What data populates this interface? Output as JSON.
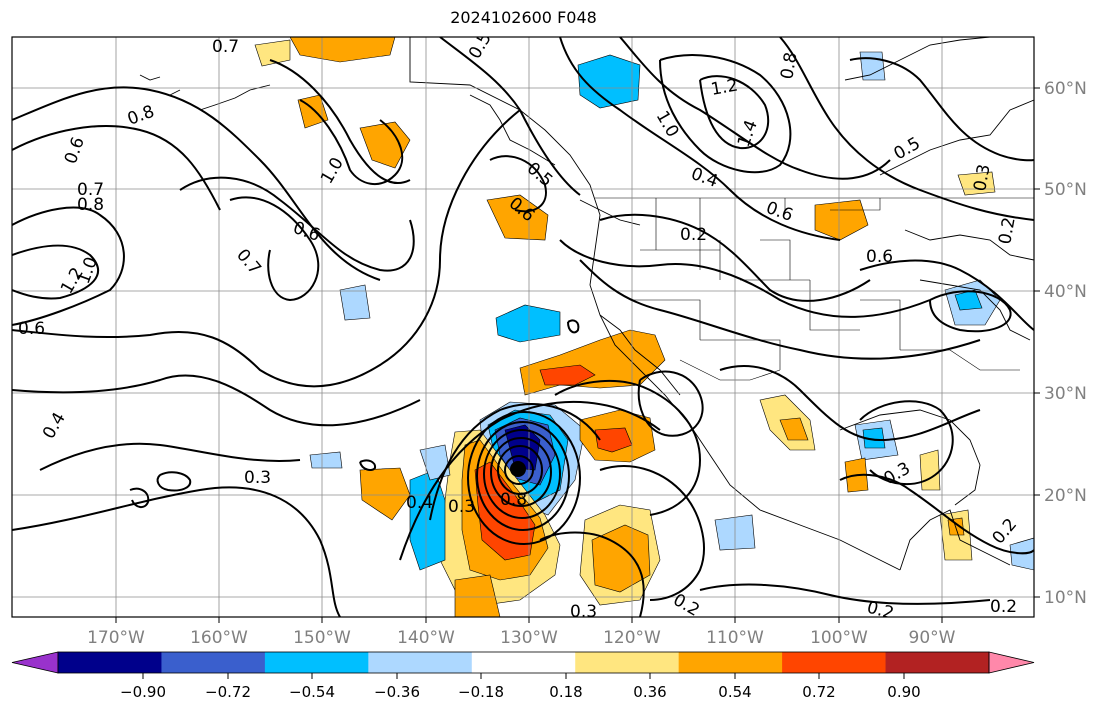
{
  "title": "2024102600 F048",
  "map": {
    "lon_labels": [
      "170°W",
      "160°W",
      "150°W",
      "140°W",
      "130°W",
      "120°W",
      "110°W",
      "100°W",
      "90°W"
    ],
    "lat_labels": [
      "60°N",
      "50°N",
      "40°N",
      "30°N",
      "20°N",
      "10°N"
    ],
    "contour_labels": [
      "0.7",
      "0.5",
      "0.8",
      "0.6",
      "0.7",
      "0.8",
      "1.0",
      "1.2",
      "0.6",
      "1.0",
      "0.6",
      "0.7",
      "0.4",
      "0.3",
      "0.5",
      "0.6",
      "1.2",
      "1.0",
      "1.4",
      "0.8",
      "0.4",
      "0.6",
      "0.2",
      "0.6",
      "0.5",
      "0.3",
      "0.2",
      "0.4",
      "0.3",
      "0.8",
      "0.3",
      "0.2",
      "0.3",
      "0.2",
      "0.2",
      "0.2"
    ]
  },
  "colorbar": {
    "tick_labels": [
      "−0.90",
      "−0.72",
      "−0.54",
      "−0.36",
      "−0.18",
      "0.18",
      "0.36",
      "0.54",
      "0.72",
      "0.90"
    ],
    "colors": [
      "#9932cc",
      "#00008b",
      "#3a5fcd",
      "#00bfff",
      "#add8ff",
      "#ffffff",
      "#ffe680",
      "#ffa500",
      "#ff4500",
      "#b22222",
      "#ff88aa"
    ]
  }
}
